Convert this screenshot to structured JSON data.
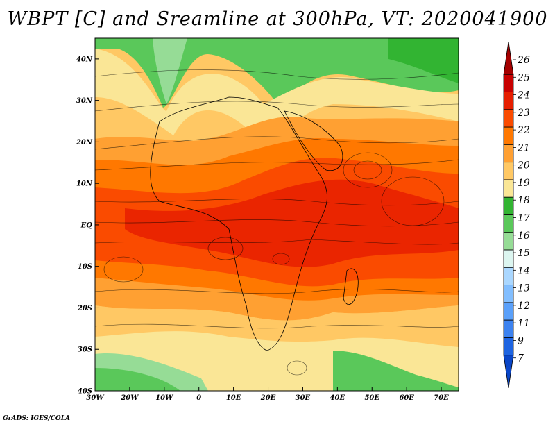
{
  "title": "WBPT [C] and Sreamline at 300hPa, VT: 2020041900",
  "footer": "GrADS: IGES/COLA",
  "map": {
    "projection": "latlon",
    "lon_range": [
      -30,
      75
    ],
    "lat_range": [
      -40,
      45
    ],
    "lon_ticks": [
      "30W",
      "20W",
      "10W",
      "0",
      "10E",
      "20E",
      "30E",
      "40E",
      "50E",
      "60E",
      "70E"
    ],
    "lat_ticks": [
      "40N",
      "30N",
      "20N",
      "10N",
      "EQ",
      "10S",
      "20S",
      "30S",
      "40S"
    ],
    "field": "wet-bulb potential temperature (shaded) with streamlines",
    "background_color": "#ffffff"
  },
  "colorbar": {
    "levels": [
      "26",
      "25",
      "24",
      "23",
      "22",
      "21",
      "20",
      "19",
      "18",
      "17",
      "16",
      "15",
      "14",
      "13",
      "12",
      "11",
      "9",
      "7"
    ],
    "colors": [
      "#a50000",
      "#c80000",
      "#e61e00",
      "#fa4b00",
      "#ff7800",
      "#ffa032",
      "#ffc864",
      "#fae696",
      "#32b432",
      "#5ac85a",
      "#96dc96",
      "#dcf5f0",
      "#aad7ff",
      "#82beff",
      "#5aa0fa",
      "#3c82f0",
      "#1e64e1",
      "#0a46c8"
    ]
  }
}
